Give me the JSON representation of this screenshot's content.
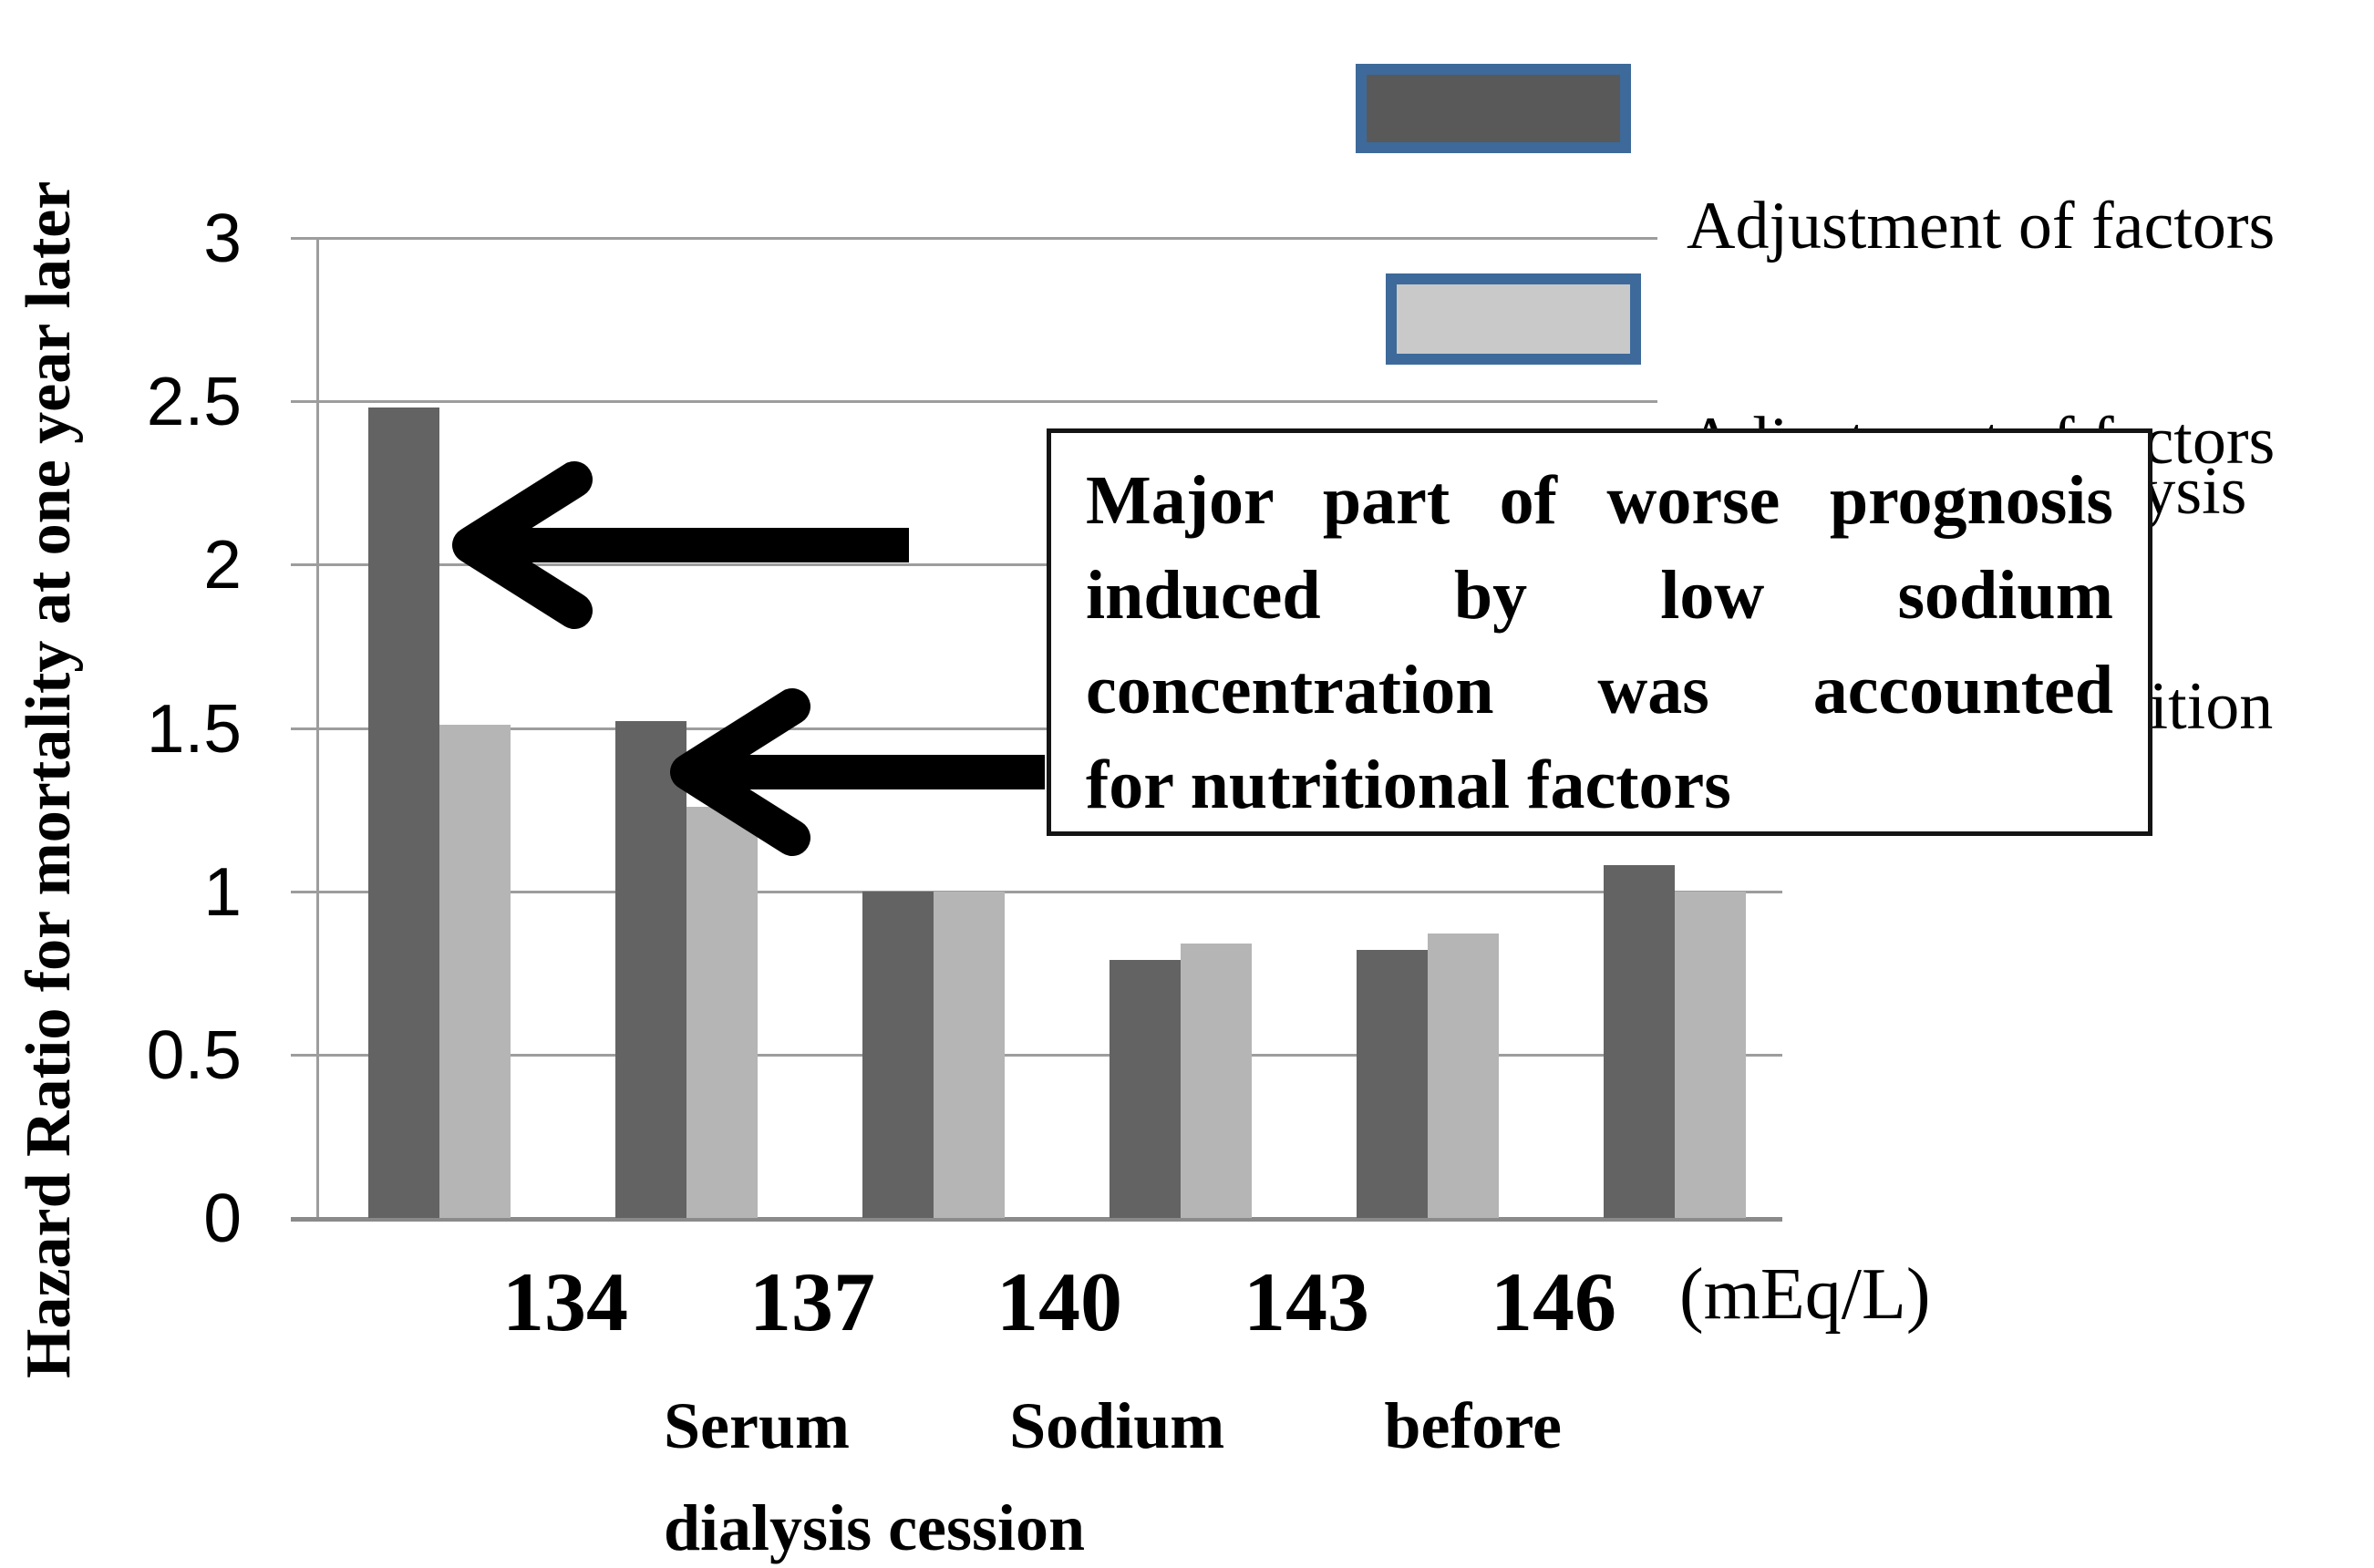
{
  "chart_data": {
    "type": "bar",
    "title": "",
    "ylabel": "Hazard Ratio for mortality at one year later",
    "xlabel_line1": "Serum Sodium before",
    "xlabel_line2": "dialysis cession",
    "x_unit": "(mEq/L)",
    "ylim": [
      0,
      3
    ],
    "y_ticks": [
      0,
      0.5,
      1,
      1.5,
      2,
      2.5,
      3
    ],
    "grid": true,
    "legend_position": "top-right",
    "x_boundary_labels": [
      "134",
      "137",
      "140",
      "143",
      "146"
    ],
    "n_groups": 6,
    "series": [
      {
        "name": "Adjustment of factors related with  dialysis",
        "color": "#636363",
        "values": [
          2.48,
          1.52,
          1.0,
          0.79,
          0.82,
          1.08
        ]
      },
      {
        "name": "Adjustment of factors related with  nutrition",
        "color": "#b5b5b5",
        "values": [
          1.51,
          1.26,
          1.0,
          0.84,
          0.87,
          1.0
        ]
      }
    ]
  },
  "legend": {
    "items": [
      {
        "line1": "Adjustment of factors",
        "line2": "related with  dialysis",
        "swatch_color": "#595959",
        "swatch_border": "#3d6a9a"
      },
      {
        "line1": "Adjustment of factors",
        "line2": "related with  nutrition",
        "swatch_color": "#c9c9c9",
        "swatch_border": "#3d6a9a"
      }
    ]
  },
  "annotation": {
    "lines": [
      "Major part of worse prognosis",
      "induced by low sodium",
      "concentration was accounted",
      "for nutritional factors"
    ]
  },
  "colors": {
    "bar_dialysis": "#636363",
    "bar_nutrition": "#b5b5b5",
    "gridline": "#9d9d9d",
    "baseline": "#8a8a8a",
    "annotation_border": "#141414",
    "arrow": "#000000",
    "legend_swatch_border": "#3d6a9a"
  }
}
